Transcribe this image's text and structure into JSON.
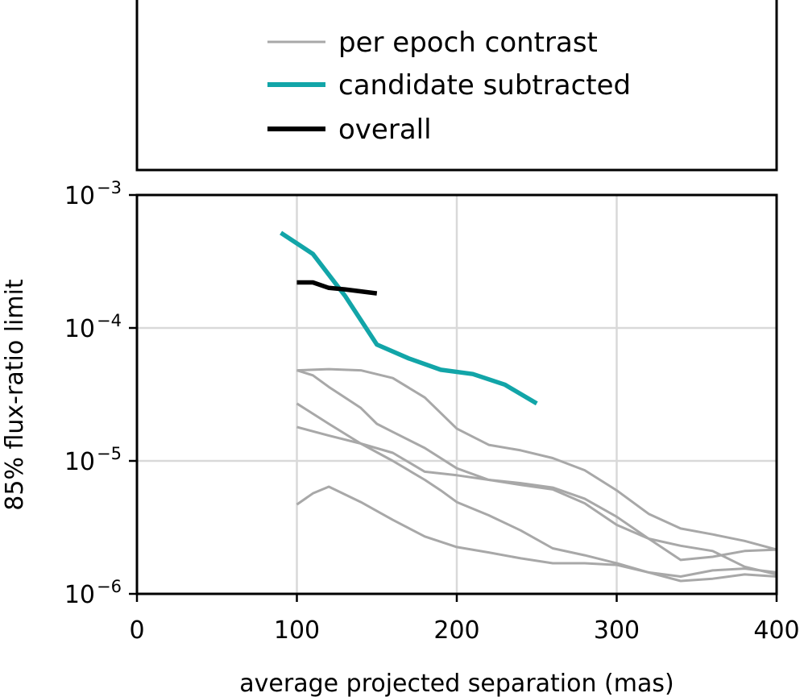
{
  "chart_data": {
    "type": "line",
    "title": "",
    "xlabel": "average projected separation (mas)",
    "ylabel": "85% flux-ratio limit",
    "xlim": [
      0,
      400
    ],
    "ylim": [
      1e-06,
      0.001
    ],
    "yscale": "log",
    "grid": true,
    "x_ticks": [
      {
        "value": 0,
        "label": "0"
      },
      {
        "value": 100,
        "label": "100"
      },
      {
        "value": 200,
        "label": "200"
      },
      {
        "value": 300,
        "label": "300"
      },
      {
        "value": 400,
        "label": "400"
      }
    ],
    "y_ticks": [
      {
        "value": 1e-06,
        "base": "10",
        "exp": "−6"
      },
      {
        "value": 1e-05,
        "base": "10",
        "exp": "−5"
      },
      {
        "value": 0.0001,
        "base": "10",
        "exp": "−4"
      },
      {
        "value": 0.001,
        "base": "10",
        "exp": "−3"
      }
    ],
    "legend": {
      "placement": "above",
      "entries": [
        {
          "label": "per epoch contrast",
          "color": "#a8a8a8"
        },
        {
          "label": "candidate subtracted",
          "color": "#12a5a8"
        },
        {
          "label": "overall",
          "color": "#000000"
        }
      ]
    },
    "series": [
      {
        "name": "per epoch contrast",
        "group": "per epoch contrast",
        "color": "#a8a8a8",
        "x": [
          100,
          120,
          140,
          160,
          180,
          200,
          220,
          240,
          260,
          280,
          300,
          320,
          340,
          360,
          380,
          400
        ],
        "y": [
          4.8e-05,
          4.9e-05,
          4.8e-05,
          4.2e-05,
          3e-05,
          1.75e-05,
          1.32e-05,
          1.2e-05,
          1.05e-05,
          8.5e-06,
          6e-06,
          4e-06,
          3.1e-06,
          2.8e-06,
          2.5e-06,
          2.15e-06
        ]
      },
      {
        "name": "per epoch contrast 2",
        "group": "per epoch contrast",
        "color": "#a8a8a8",
        "x": [
          100,
          110,
          120,
          130,
          140,
          150,
          160,
          180,
          200,
          220,
          240,
          260,
          280,
          300,
          320,
          340,
          360,
          380,
          400
        ],
        "y": [
          4.8e-05,
          4.4e-05,
          3.6e-05,
          3e-05,
          2.5e-05,
          1.9e-05,
          1.65e-05,
          1.25e-05,
          8.8e-06,
          7.2e-06,
          6.8e-06,
          6.3e-06,
          5.2e-06,
          3.8e-06,
          2.6e-06,
          2.3e-06,
          2.1e-06,
          1.6e-06,
          1.4e-06
        ]
      },
      {
        "name": "per epoch contrast 3",
        "group": "per epoch contrast",
        "color": "#a8a8a8",
        "x": [
          100,
          120,
          140,
          160,
          180,
          190,
          200,
          220,
          240,
          260,
          280,
          300,
          320,
          340,
          360,
          380,
          400
        ],
        "y": [
          2.7e-05,
          1.9e-05,
          1.35e-05,
          1e-05,
          7.2e-06,
          6e-06,
          4.9e-06,
          3.9e-06,
          3e-06,
          2.2e-06,
          1.95e-06,
          1.7e-06,
          1.45e-06,
          1.35e-06,
          1.5e-06,
          1.55e-06,
          1.45e-06
        ]
      },
      {
        "name": "per epoch contrast 4",
        "group": "per epoch contrast",
        "color": "#a8a8a8",
        "x": [
          100,
          120,
          140,
          160,
          180,
          200,
          220,
          240,
          260,
          280,
          300,
          320,
          340,
          360,
          380,
          400
        ],
        "y": [
          1.8e-05,
          1.55e-05,
          1.35e-05,
          1.15e-05,
          8.3e-06,
          7.8e-06,
          7.2e-06,
          6.6e-06,
          6.1e-06,
          4.8e-06,
          3.3e-06,
          2.6e-06,
          1.8e-06,
          1.9e-06,
          2.1e-06,
          2.15e-06
        ]
      },
      {
        "name": "per epoch contrast 5",
        "group": "per epoch contrast",
        "color": "#a8a8a8",
        "x": [
          100,
          110,
          120,
          140,
          160,
          180,
          200,
          220,
          240,
          260,
          280,
          300,
          320,
          340,
          360,
          380,
          400
        ],
        "y": [
          4.7e-06,
          5.7e-06,
          6.4e-06,
          4.9e-06,
          3.6e-06,
          2.7e-06,
          2.25e-06,
          2.05e-06,
          1.85e-06,
          1.7e-06,
          1.7e-06,
          1.65e-06,
          1.45e-06,
          1.25e-06,
          1.3e-06,
          1.4e-06,
          1.35e-06
        ]
      },
      {
        "name": "candidate subtracted",
        "group": "candidate subtracted",
        "color": "#12a5a8",
        "x": [
          90,
          110,
          130,
          150,
          170,
          190,
          210,
          230,
          250
        ],
        "y": [
          0.00052,
          0.00036,
          0.000175,
          7.5e-05,
          5.9e-05,
          4.85e-05,
          4.5e-05,
          3.75e-05,
          2.7e-05
        ]
      },
      {
        "name": "overall",
        "group": "overall",
        "color": "#000000",
        "x": [
          100,
          110,
          120,
          130,
          150
        ],
        "y": [
          0.00022,
          0.00022,
          0.0002,
          0.000195,
          0.000182
        ]
      }
    ]
  }
}
